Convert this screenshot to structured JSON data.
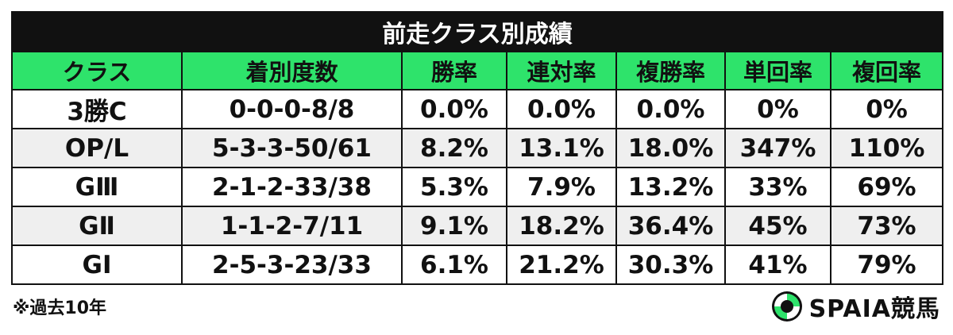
{
  "table": {
    "title": "前走クラス別成績",
    "columns": [
      "クラス",
      "着別度数",
      "勝率",
      "連対率",
      "複勝率",
      "単回率",
      "複回率"
    ],
    "rows": [
      [
        "3勝C",
        "0-0-0-8/8",
        "0.0%",
        "0.0%",
        "0.0%",
        "0%",
        "0%"
      ],
      [
        "OP/L",
        "5-3-3-50/61",
        "8.2%",
        "13.1%",
        "18.0%",
        "347%",
        "110%"
      ],
      [
        "GⅢ",
        "2-1-2-33/38",
        "5.3%",
        "7.9%",
        "13.2%",
        "33%",
        "69%"
      ],
      [
        "GⅡ",
        "1-1-2-7/11",
        "9.1%",
        "18.2%",
        "36.4%",
        "45%",
        "73%"
      ],
      [
        "GⅠ",
        "2-5-3-23/33",
        "6.1%",
        "21.2%",
        "30.3%",
        "41%",
        "79%"
      ]
    ]
  },
  "footer": {
    "note": "※過去10年",
    "logo": "SPAIA競馬"
  }
}
